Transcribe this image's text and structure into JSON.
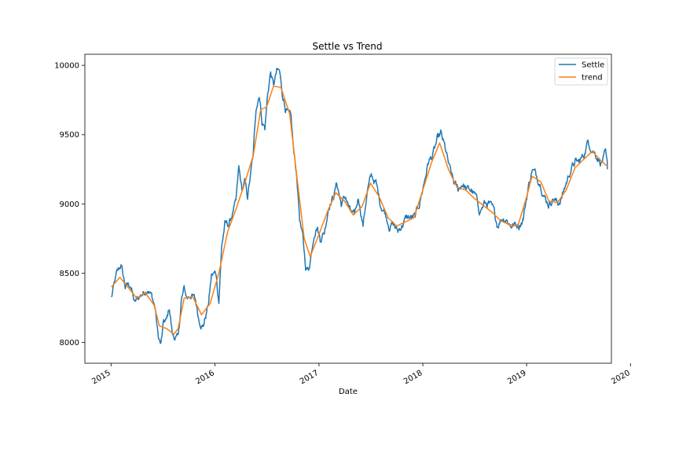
{
  "chart_data": {
    "type": "line",
    "title": "Settle vs Trend",
    "xlabel": "Date",
    "ylabel": "",
    "xlim": [
      "2014-10-01",
      "2019-10-26"
    ],
    "ylim": [
      7850,
      10080
    ],
    "x_ticks": [
      {
        "label": "2015",
        "date": "2015-01-01"
      },
      {
        "label": "2016",
        "date": "2016-01-01"
      },
      {
        "label": "2017",
        "date": "2017-01-01"
      },
      {
        "label": "2018",
        "date": "2018-01-01"
      },
      {
        "label": "2019",
        "date": "2019-01-01"
      },
      {
        "label": "2020",
        "date": "2020-01-01"
      }
    ],
    "y_ticks": [
      8000,
      8500,
      9000,
      9500,
      10000
    ],
    "legend": {
      "position": "top-right"
    },
    "grid": false,
    "series": [
      {
        "name": "Settle",
        "color": "#1f77b4",
        "noise": 45,
        "points": [
          [
            "2015-01-02",
            8320
          ],
          [
            "2015-01-20",
            8480
          ],
          [
            "2015-02-05",
            8560
          ],
          [
            "2015-02-20",
            8400
          ],
          [
            "2015-03-10",
            8420
          ],
          [
            "2015-03-25",
            8280
          ],
          [
            "2015-04-10",
            8330
          ],
          [
            "2015-04-25",
            8360
          ],
          [
            "2015-05-10",
            8400
          ],
          [
            "2015-05-25",
            8330
          ],
          [
            "2015-06-05",
            8250
          ],
          [
            "2015-06-15",
            8050
          ],
          [
            "2015-06-25",
            7980
          ],
          [
            "2015-07-05",
            8140
          ],
          [
            "2015-07-15",
            8150
          ],
          [
            "2015-07-25",
            8250
          ],
          [
            "2015-08-05",
            8050
          ],
          [
            "2015-08-15",
            8040
          ],
          [
            "2015-08-25",
            8020
          ],
          [
            "2015-09-05",
            8300
          ],
          [
            "2015-09-15",
            8380
          ],
          [
            "2015-09-25",
            8320
          ],
          [
            "2015-10-10",
            8350
          ],
          [
            "2015-10-25",
            8300
          ],
          [
            "2015-11-05",
            8180
          ],
          [
            "2015-11-20",
            8120
          ],
          [
            "2015-12-01",
            8200
          ],
          [
            "2015-12-10",
            8290
          ],
          [
            "2015-12-20",
            8480
          ],
          [
            "2016-01-05",
            8500
          ],
          [
            "2016-01-15",
            8300
          ],
          [
            "2016-01-25",
            8700
          ],
          [
            "2016-02-05",
            8850
          ],
          [
            "2016-02-20",
            8850
          ],
          [
            "2016-03-05",
            8950
          ],
          [
            "2016-03-15",
            9000
          ],
          [
            "2016-03-25",
            9250
          ],
          [
            "2016-04-05",
            9100
          ],
          [
            "2016-04-15",
            9150
          ],
          [
            "2016-04-25",
            9050
          ],
          [
            "2016-05-05",
            9200
          ],
          [
            "2016-05-15",
            9350
          ],
          [
            "2016-05-25",
            9700
          ],
          [
            "2016-06-05",
            9800
          ],
          [
            "2016-06-15",
            9600
          ],
          [
            "2016-06-25",
            9550
          ],
          [
            "2016-07-05",
            9800
          ],
          [
            "2016-07-15",
            9950
          ],
          [
            "2016-07-25",
            9850
          ],
          [
            "2016-08-05",
            9950
          ],
          [
            "2016-08-15",
            9950
          ],
          [
            "2016-08-25",
            9800
          ],
          [
            "2016-09-05",
            9700
          ],
          [
            "2016-09-15",
            9650
          ],
          [
            "2016-09-25",
            9600
          ],
          [
            "2016-10-05",
            9350
          ],
          [
            "2016-10-15",
            9200
          ],
          [
            "2016-10-25",
            8900
          ],
          [
            "2016-11-05",
            8750
          ],
          [
            "2016-11-15",
            8550
          ],
          [
            "2016-11-25",
            8520
          ],
          [
            "2016-12-05",
            8650
          ],
          [
            "2016-12-15",
            8800
          ],
          [
            "2016-12-25",
            8850
          ],
          [
            "2017-01-05",
            8750
          ],
          [
            "2017-01-20",
            8800
          ],
          [
            "2017-02-05",
            9000
          ],
          [
            "2017-02-20",
            9050
          ],
          [
            "2017-03-05",
            9150
          ],
          [
            "2017-03-20",
            9000
          ],
          [
            "2017-04-05",
            9050
          ],
          [
            "2017-04-20",
            8950
          ],
          [
            "2017-05-05",
            8900
          ],
          [
            "2017-05-20",
            9050
          ],
          [
            "2017-06-05",
            8850
          ],
          [
            "2017-06-20",
            9100
          ],
          [
            "2017-07-05",
            9200
          ],
          [
            "2017-07-20",
            9150
          ],
          [
            "2017-08-05",
            9000
          ],
          [
            "2017-08-20",
            8950
          ],
          [
            "2017-09-05",
            8850
          ],
          [
            "2017-09-20",
            8850
          ],
          [
            "2017-10-05",
            8800
          ],
          [
            "2017-10-20",
            8850
          ],
          [
            "2017-11-05",
            8900
          ],
          [
            "2017-11-20",
            8900
          ],
          [
            "2017-12-05",
            8900
          ],
          [
            "2017-12-20",
            9000
          ],
          [
            "2018-01-05",
            9150
          ],
          [
            "2018-01-20",
            9300
          ],
          [
            "2018-02-05",
            9350
          ],
          [
            "2018-02-20",
            9450
          ],
          [
            "2018-03-05",
            9500
          ],
          [
            "2018-03-20",
            9400
          ],
          [
            "2018-04-05",
            9250
          ],
          [
            "2018-04-20",
            9150
          ],
          [
            "2018-05-05",
            9100
          ],
          [
            "2018-05-20",
            9150
          ],
          [
            "2018-06-05",
            9100
          ],
          [
            "2018-06-20",
            9100
          ],
          [
            "2018-07-05",
            9050
          ],
          [
            "2018-07-20",
            8950
          ],
          [
            "2018-08-05",
            9000
          ],
          [
            "2018-08-20",
            9000
          ],
          [
            "2018-09-05",
            8950
          ],
          [
            "2018-09-20",
            8850
          ],
          [
            "2018-10-05",
            8900
          ],
          [
            "2018-10-20",
            8900
          ],
          [
            "2018-11-05",
            8850
          ],
          [
            "2018-11-20",
            8850
          ],
          [
            "2018-12-05",
            8850
          ],
          [
            "2018-12-20",
            8900
          ],
          [
            "2019-01-05",
            9100
          ],
          [
            "2019-01-20",
            9250
          ],
          [
            "2019-02-05",
            9200
          ],
          [
            "2019-02-20",
            9150
          ],
          [
            "2019-03-05",
            9050
          ],
          [
            "2019-03-20",
            9000
          ],
          [
            "2019-04-05",
            9050
          ],
          [
            "2019-04-20",
            9000
          ],
          [
            "2019-05-05",
            9050
          ],
          [
            "2019-05-20",
            9150
          ],
          [
            "2019-06-05",
            9250
          ],
          [
            "2019-06-20",
            9300
          ],
          [
            "2019-07-05",
            9300
          ],
          [
            "2019-07-20",
            9350
          ],
          [
            "2019-08-05",
            9450
          ],
          [
            "2019-08-20",
            9400
          ],
          [
            "2019-09-05",
            9350
          ],
          [
            "2019-09-20",
            9300
          ],
          [
            "2019-10-05",
            9350
          ],
          [
            "2019-10-12",
            9250
          ]
        ]
      },
      {
        "name": "trend",
        "color": "#ff7f0e",
        "noise": 0,
        "points": [
          [
            "2015-01-02",
            8400
          ],
          [
            "2015-02-01",
            8470
          ],
          [
            "2015-03-01",
            8400
          ],
          [
            "2015-04-01",
            8320
          ],
          [
            "2015-05-01",
            8360
          ],
          [
            "2015-06-01",
            8270
          ],
          [
            "2015-06-20",
            8120
          ],
          [
            "2015-07-15",
            8100
          ],
          [
            "2015-08-10",
            8060
          ],
          [
            "2015-08-25",
            8100
          ],
          [
            "2015-09-15",
            8320
          ],
          [
            "2015-10-15",
            8330
          ],
          [
            "2015-11-15",
            8200
          ],
          [
            "2015-12-15",
            8280
          ],
          [
            "2016-01-15",
            8500
          ],
          [
            "2016-02-15",
            8800
          ],
          [
            "2016-03-15",
            8960
          ],
          [
            "2016-04-15",
            9150
          ],
          [
            "2016-05-15",
            9350
          ],
          [
            "2016-06-10",
            9680
          ],
          [
            "2016-07-01",
            9700
          ],
          [
            "2016-07-25",
            9850
          ],
          [
            "2016-08-20",
            9840
          ],
          [
            "2016-09-20",
            9650
          ],
          [
            "2016-10-15",
            9200
          ],
          [
            "2016-11-10",
            8750
          ],
          [
            "2016-12-01",
            8620
          ],
          [
            "2017-01-01",
            8780
          ],
          [
            "2017-02-01",
            8950
          ],
          [
            "2017-03-01",
            9080
          ],
          [
            "2017-04-01",
            9020
          ],
          [
            "2017-05-01",
            8920
          ],
          [
            "2017-06-01",
            8980
          ],
          [
            "2017-07-01",
            9150
          ],
          [
            "2017-08-01",
            9050
          ],
          [
            "2017-09-01",
            8900
          ],
          [
            "2017-10-01",
            8840
          ],
          [
            "2017-11-01",
            8870
          ],
          [
            "2017-12-01",
            8900
          ],
          [
            "2018-01-01",
            9100
          ],
          [
            "2018-02-01",
            9300
          ],
          [
            "2018-03-01",
            9440
          ],
          [
            "2018-04-01",
            9250
          ],
          [
            "2018-05-01",
            9120
          ],
          [
            "2018-06-01",
            9100
          ],
          [
            "2018-07-01",
            9040
          ],
          [
            "2018-08-01",
            8990
          ],
          [
            "2018-09-01",
            8940
          ],
          [
            "2018-10-01",
            8880
          ],
          [
            "2018-11-01",
            8850
          ],
          [
            "2018-12-01",
            8840
          ],
          [
            "2019-01-01",
            9050
          ],
          [
            "2019-01-20",
            9200
          ],
          [
            "2019-02-20",
            9160
          ],
          [
            "2019-03-20",
            9020
          ],
          [
            "2019-04-20",
            9010
          ],
          [
            "2019-05-20",
            9100
          ],
          [
            "2019-06-20",
            9260
          ],
          [
            "2019-07-20",
            9320
          ],
          [
            "2019-08-20",
            9380
          ],
          [
            "2019-09-20",
            9310
          ],
          [
            "2019-10-12",
            9270
          ]
        ]
      }
    ]
  }
}
